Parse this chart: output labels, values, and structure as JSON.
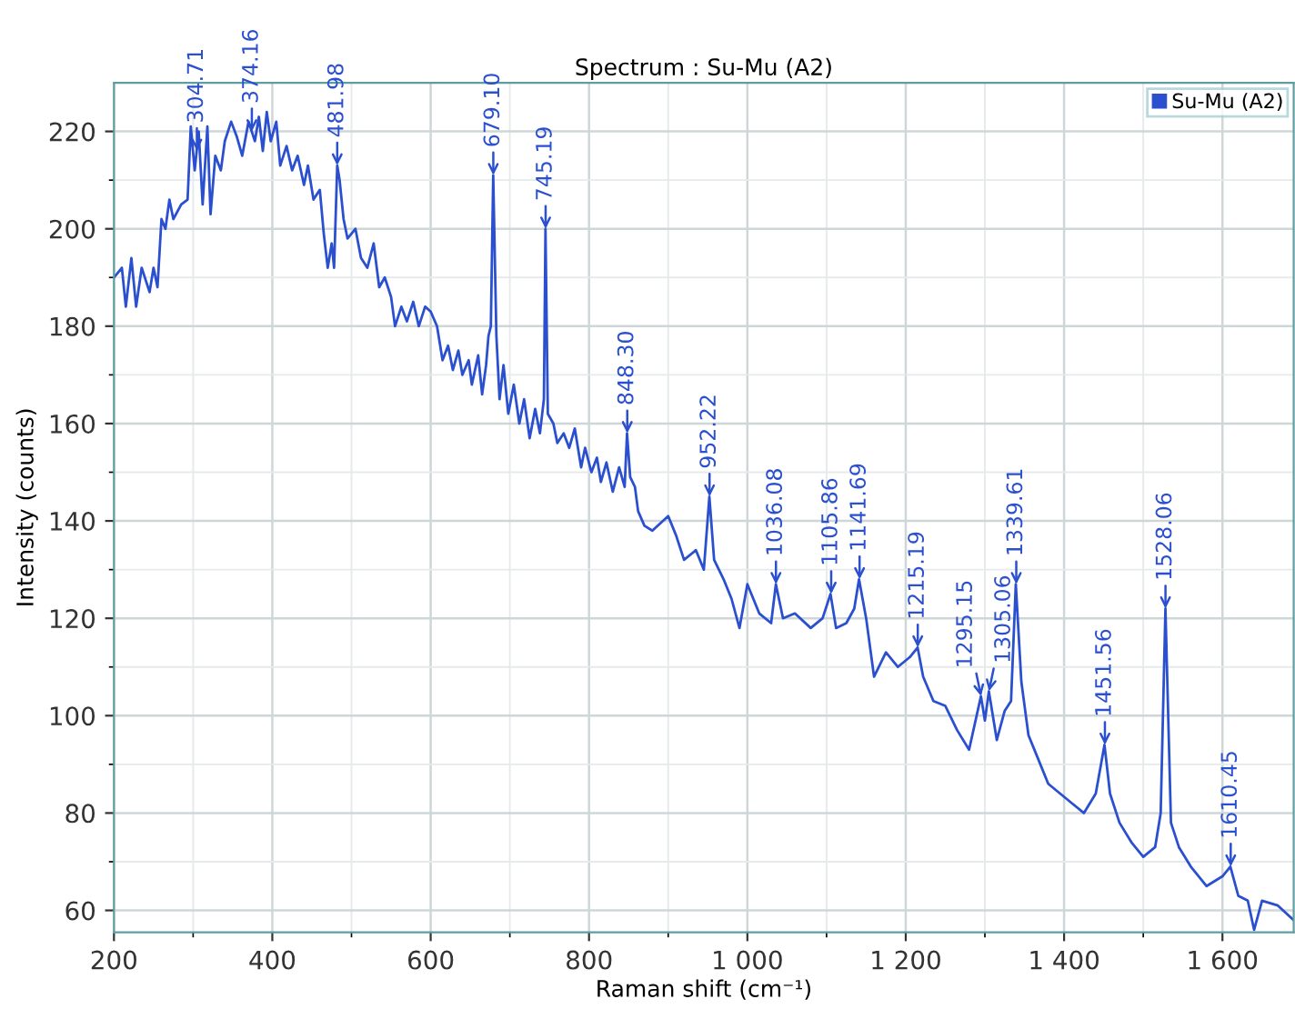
{
  "chart_data": {
    "type": "line",
    "title": "Spectrum : Su-Mu (A2)",
    "xlabel": "Raman shift (cm⁻¹)",
    "ylabel": "Intensity (counts)",
    "x": [
      200,
      210,
      215,
      222,
      228,
      235,
      245,
      250,
      255,
      260,
      265,
      270,
      275,
      285,
      293,
      297,
      302,
      307,
      312,
      318,
      322,
      328,
      335,
      340,
      348,
      355,
      362,
      370,
      378,
      383,
      388,
      393,
      398,
      405,
      410,
      418,
      425,
      432,
      440,
      445,
      452,
      460,
      465,
      470,
      475,
      478,
      482,
      485,
      490,
      495,
      505,
      512,
      520,
      528,
      535,
      542,
      550,
      555,
      563,
      570,
      578,
      585,
      593,
      600,
      608,
      615,
      622,
      628,
      635,
      640,
      648,
      652,
      660,
      665,
      670,
      673,
      676,
      679,
      683,
      687,
      692,
      698,
      705,
      712,
      718,
      725,
      732,
      738,
      743,
      745,
      748,
      755,
      760,
      768,
      775,
      782,
      790,
      795,
      803,
      810,
      815,
      822,
      830,
      838,
      845,
      848,
      852,
      858,
      862,
      870,
      880,
      900,
      910,
      920,
      935,
      945,
      952,
      958,
      970,
      980,
      990,
      1000,
      1015,
      1030,
      1036,
      1045,
      1060,
      1080,
      1095,
      1105,
      1112,
      1125,
      1135,
      1141,
      1150,
      1160,
      1175,
      1190,
      1205,
      1215,
      1222,
      1235,
      1250,
      1265,
      1280,
      1295,
      1300,
      1305,
      1315,
      1325,
      1333,
      1339,
      1346,
      1355,
      1365,
      1380,
      1395,
      1410,
      1425,
      1440,
      1451,
      1458,
      1470,
      1485,
      1500,
      1515,
      1522,
      1528,
      1535,
      1545,
      1560,
      1580,
      1600,
      1610,
      1620,
      1632,
      1640,
      1650,
      1670,
      1690
    ],
    "series": [
      {
        "name": "Su-Mu (A2)",
        "color": "#2a4fcf",
        "values": [
          190,
          192,
          184,
          194,
          184,
          192,
          187,
          192,
          188,
          202,
          200,
          206,
          202,
          205,
          206,
          221,
          212,
          220,
          205,
          221,
          203,
          215,
          212,
          218,
          222,
          219,
          215,
          222,
          218,
          223,
          216,
          224,
          218,
          222,
          213,
          217,
          212,
          215,
          209,
          213,
          206,
          208,
          199,
          192,
          197,
          192,
          213,
          210,
          202,
          198,
          200,
          194,
          192,
          197,
          188,
          190,
          186,
          180,
          184,
          181,
          185,
          180,
          184,
          183,
          180,
          173,
          176,
          171,
          175,
          170,
          173,
          168,
          174,
          166,
          172,
          178,
          180,
          211,
          178,
          165,
          172,
          162,
          168,
          160,
          165,
          157,
          163,
          158,
          165,
          200,
          162,
          160,
          156,
          158,
          155,
          159,
          151,
          155,
          150,
          153,
          148,
          152,
          146,
          151,
          147,
          158,
          149,
          147,
          142,
          139,
          138,
          141,
          137,
          132,
          134,
          130,
          145,
          132,
          128,
          124,
          118,
          127,
          121,
          119,
          127,
          120,
          121,
          118,
          120,
          125,
          118,
          119,
          122,
          128,
          120,
          108,
          113,
          110,
          112,
          114,
          108,
          103,
          102,
          97,
          93,
          104,
          99,
          105,
          95,
          101,
          103,
          127,
          107,
          96,
          92,
          86,
          84,
          82,
          80,
          84,
          94,
          84,
          78,
          74,
          71,
          73,
          80,
          122,
          78,
          73,
          69,
          65,
          67,
          69,
          63,
          62,
          56,
          62,
          61,
          58
        ]
      }
    ],
    "xlim": [
      200,
      1690
    ],
    "ylim": [
      55.5,
      230
    ],
    "xticks": [
      200,
      400,
      600,
      800,
      {
        "value": 1000,
        "label": "1 000"
      },
      {
        "value": 1200,
        "label": "1 200"
      },
      {
        "value": 1400,
        "label": "1 400"
      },
      {
        "value": 1600,
        "label": "1 600"
      }
    ],
    "yticks": [
      60,
      80,
      100,
      120,
      140,
      160,
      180,
      200,
      220
    ],
    "grid": true,
    "legend": "top right",
    "marker": "none",
    "line_style": "solid",
    "annotations": [
      {
        "text": "304.71",
        "x": 304.71,
        "y": 216
      },
      {
        "text": "374.16",
        "x": 374.16,
        "y": 220
      },
      {
        "text": "481.98",
        "x": 481.98,
        "y": 213
      },
      {
        "text": "679.10",
        "x": 679.1,
        "y": 211
      },
      {
        "text": "745.19",
        "x": 745.19,
        "y": 200
      },
      {
        "text": "848.30",
        "x": 848.3,
        "y": 158
      },
      {
        "text": "952.22",
        "x": 952.22,
        "y": 145
      },
      {
        "text": "1036.08",
        "x": 1036.08,
        "y": 127
      },
      {
        "text": "1105.86",
        "x": 1105.86,
        "y": 125
      },
      {
        "text": "1141.69",
        "x": 1141.69,
        "y": 128
      },
      {
        "text": "1215.19",
        "x": 1215.19,
        "y": 114
      },
      {
        "text": "1295.15",
        "x": 1295.15,
        "y": 104
      },
      {
        "text": "1305.06",
        "x": 1305.06,
        "y": 105
      },
      {
        "text": "1339.61",
        "x": 1339.61,
        "y": 127
      },
      {
        "text": "1451.56",
        "x": 1451.56,
        "y": 94
      },
      {
        "text": "1528.06",
        "x": 1528.06,
        "y": 122
      },
      {
        "text": "1610.45",
        "x": 1610.45,
        "y": 69
      }
    ]
  }
}
